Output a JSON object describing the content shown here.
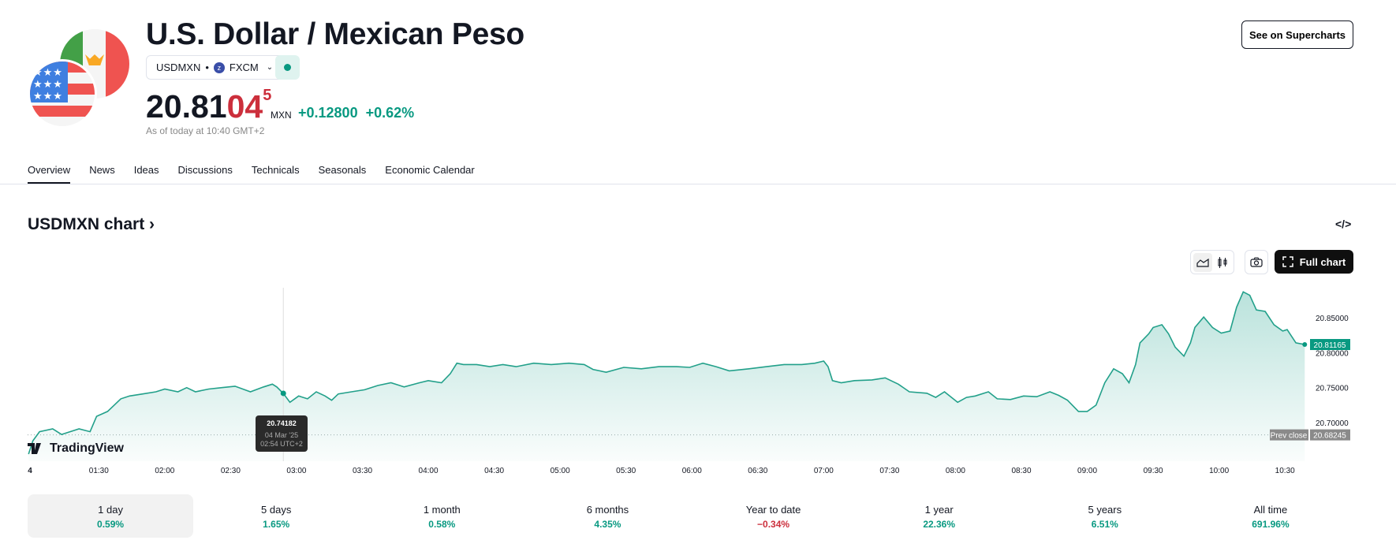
{
  "header": {
    "title": "U.S. Dollar / Mexican Peso",
    "symbol": "USDMXN",
    "exchange": "FXCM",
    "price_main": "20.81",
    "price_red": "04",
    "price_sup": "5",
    "currency": "MXN",
    "change": "+0.12800",
    "change_pct": "+0.62%",
    "as_of": "As of today at 10:40 GMT+2",
    "supercharts_label": "See on Supercharts"
  },
  "tabs": [
    "Overview",
    "News",
    "Ideas",
    "Discussions",
    "Technicals",
    "Seasonals",
    "Economic Calendar"
  ],
  "chart_section": {
    "title": "USDMXN chart",
    "chevron": "›",
    "embed_icon": "</>",
    "full_chart_label": "Full chart",
    "logo": "TradingView",
    "tooltip": {
      "value": "20.74182",
      "date": "04 Mar '25",
      "time": "02:54 UTC+2"
    }
  },
  "colors": {
    "green": "#089981",
    "red": "#cc2f3c"
  },
  "chart_data": {
    "type": "area",
    "y_ticks": [
      "20.85000",
      "20.80000",
      "20.75000",
      "20.70000"
    ],
    "y_tick_values": [
      20.85,
      20.8,
      20.75,
      20.7
    ],
    "x_ticks": [
      "4",
      "01:30",
      "02:00",
      "02:30",
      "03:00",
      "03:30",
      "04:00",
      "04:30",
      "05:00",
      "05:30",
      "06:00",
      "06:30",
      "07:00",
      "07:30",
      "08:00",
      "08:30",
      "09:00",
      "09:30",
      "10:00",
      "10:30"
    ],
    "x_tick_minutes": [
      60,
      90,
      120,
      150,
      180,
      210,
      240,
      270,
      300,
      330,
      360,
      390,
      420,
      450,
      480,
      510,
      540,
      570,
      600,
      630
    ],
    "last_price": "20.81165",
    "last_value": 20.81165,
    "prev_close_label": "Prev close",
    "prev_close": "20.68245",
    "prev_close_value": 20.68245,
    "points_minute": [
      58,
      60,
      63,
      69,
      73,
      81,
      86,
      89,
      94,
      97,
      100,
      104,
      110,
      116,
      120,
      126,
      130,
      134,
      140,
      146,
      152,
      159,
      165,
      169,
      171,
      174,
      177,
      181,
      185,
      189,
      193,
      196,
      199,
      205,
      211,
      217,
      223,
      229,
      236,
      240,
      246,
      250,
      253,
      256,
      262,
      268,
      274,
      280,
      288,
      296,
      304,
      311,
      315,
      321,
      329,
      337,
      345,
      353,
      359,
      365,
      371,
      377,
      386,
      394,
      402,
      410,
      416,
      420,
      422,
      424,
      428,
      434,
      442,
      448,
      454,
      459,
      467,
      471,
      475,
      481,
      485,
      489,
      495,
      499,
      505,
      511,
      517,
      523,
      527,
      531,
      536,
      540,
      544,
      548,
      552,
      556,
      559,
      562,
      564,
      568,
      570,
      574,
      577,
      580,
      584,
      587,
      589,
      593,
      597,
      601,
      605,
      608,
      611,
      614,
      617,
      621,
      625,
      629,
      631,
      635,
      639
    ],
    "points_value": [
      20.655,
      20.674,
      20.687,
      20.691,
      20.683,
      20.691,
      20.687,
      20.709,
      20.716,
      20.725,
      20.734,
      20.738,
      20.741,
      20.744,
      20.748,
      20.744,
      20.75,
      20.744,
      20.748,
      20.75,
      20.752,
      20.744,
      20.751,
      20.755,
      20.751,
      20.74182,
      20.729,
      20.738,
      20.734,
      20.744,
      20.738,
      20.732,
      20.741,
      20.744,
      20.747,
      20.753,
      20.757,
      20.751,
      20.757,
      20.76,
      20.757,
      20.77,
      20.785,
      20.783,
      20.783,
      20.78,
      20.783,
      20.78,
      20.785,
      20.783,
      20.785,
      20.783,
      20.776,
      20.772,
      20.779,
      20.777,
      20.78,
      20.78,
      20.779,
      20.785,
      20.78,
      20.774,
      20.777,
      20.78,
      20.783,
      20.783,
      20.785,
      20.788,
      20.78,
      20.76,
      20.757,
      20.76,
      20.761,
      20.764,
      20.755,
      20.744,
      20.742,
      20.736,
      20.744,
      20.729,
      20.736,
      20.738,
      20.744,
      20.734,
      20.733,
      20.738,
      20.737,
      20.744,
      20.739,
      20.732,
      20.716,
      20.716,
      20.725,
      20.757,
      20.777,
      20.77,
      20.757,
      20.783,
      20.814,
      20.827,
      20.836,
      20.84,
      20.827,
      20.808,
      20.795,
      20.814,
      20.836,
      20.851,
      20.836,
      20.828,
      20.831,
      20.865,
      20.887,
      20.882,
      20.861,
      20.859,
      20.84,
      20.831,
      20.833,
      20.814,
      20.81165
    ],
    "hover_minute": 174,
    "hover_value": 20.74182
  },
  "periods": [
    {
      "label": "1 day",
      "pct": "0.59%",
      "dir": "up"
    },
    {
      "label": "5 days",
      "pct": "1.65%",
      "dir": "up"
    },
    {
      "label": "1 month",
      "pct": "0.58%",
      "dir": "up"
    },
    {
      "label": "6 months",
      "pct": "4.35%",
      "dir": "up"
    },
    {
      "label": "Year to date",
      "pct": "−0.34%",
      "dir": "down"
    },
    {
      "label": "1 year",
      "pct": "22.36%",
      "dir": "up"
    },
    {
      "label": "5 years",
      "pct": "6.51%",
      "dir": "up"
    },
    {
      "label": "All time",
      "pct": "691.96%",
      "dir": "up"
    }
  ]
}
